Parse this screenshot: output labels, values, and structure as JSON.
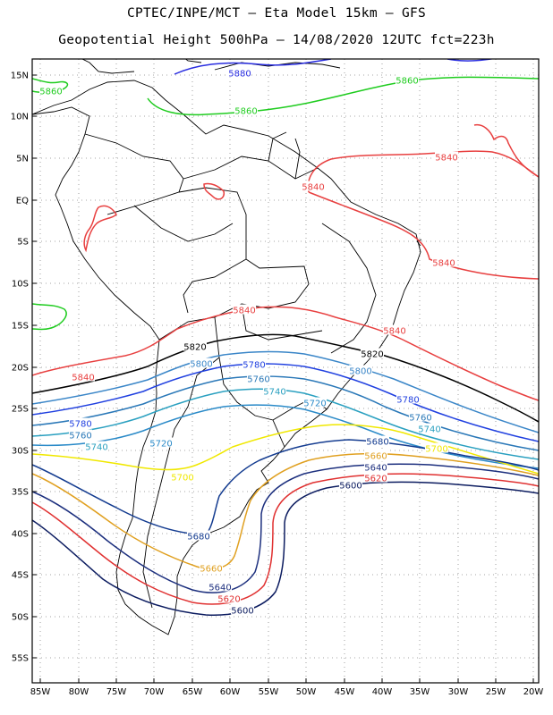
{
  "header": {
    "line1": "CPTEC/INPE/MCT –  Eta Model 15km – GFS",
    "line2": "Geopotential Height 500hPa – 14/08/2020 12UTC fct=223h"
  },
  "axes": {
    "lat_ticks": [
      "15N",
      "10N",
      "5N",
      "EQ",
      "5S",
      "10S",
      "15S",
      "20S",
      "25S",
      "30S",
      "35S",
      "40S",
      "45S",
      "50S",
      "55S"
    ],
    "lon_ticks": [
      "85W",
      "80W",
      "75W",
      "70W",
      "65W",
      "60W",
      "55W",
      "50W",
      "45W",
      "40W",
      "35W",
      "30W",
      "25W",
      "20W"
    ]
  },
  "contour_colors": {
    "5880": "#2a2ee0",
    "5860": "#1fcc1f",
    "5840": "#e84040",
    "5820": "#000000",
    "5800": "#3a86c8",
    "5780": "#2040e0",
    "5760": "#2a78b8",
    "5740": "#2aa0c0",
    "5720": "#2a8ac8",
    "5700": "#f0e800",
    "5680": "#143c90",
    "5660": "#e0a020",
    "5640": "#1c2f7e",
    "5620": "#e03030",
    "5600": "#0c1c60"
  },
  "contour_labels": [
    {
      "text": "5880",
      "level": "5880"
    },
    {
      "text": "5860",
      "level": "5860"
    },
    {
      "text": "5860",
      "level": "5860"
    },
    {
      "text": "5860",
      "level": "5860"
    },
    {
      "text": "5840",
      "level": "5840"
    },
    {
      "text": "5840",
      "level": "5840"
    },
    {
      "text": "5840",
      "level": "5840"
    },
    {
      "text": "5840",
      "level": "5840"
    },
    {
      "text": "5840",
      "level": "5840"
    },
    {
      "text": "5840",
      "level": "5840"
    },
    {
      "text": "5820",
      "level": "5820"
    },
    {
      "text": "5820",
      "level": "5820"
    },
    {
      "text": "5800",
      "level": "5800"
    },
    {
      "text": "5800",
      "level": "5800"
    },
    {
      "text": "5780",
      "level": "5780"
    },
    {
      "text": "5780",
      "level": "5780"
    },
    {
      "text": "5780",
      "level": "5780"
    },
    {
      "text": "5760",
      "level": "5760"
    },
    {
      "text": "5760",
      "level": "5760"
    },
    {
      "text": "5760",
      "level": "5760"
    },
    {
      "text": "5740",
      "level": "5740"
    },
    {
      "text": "5740",
      "level": "5740"
    },
    {
      "text": "5740",
      "level": "5740"
    },
    {
      "text": "5720",
      "level": "5720"
    },
    {
      "text": "5720",
      "level": "5720"
    },
    {
      "text": "5700",
      "level": "5700"
    },
    {
      "text": "5700",
      "level": "5700"
    },
    {
      "text": "5680",
      "level": "5680"
    },
    {
      "text": "5680",
      "level": "5680"
    },
    {
      "text": "5660",
      "level": "5660"
    },
    {
      "text": "5660",
      "level": "5660"
    },
    {
      "text": "5640",
      "level": "5640"
    },
    {
      "text": "5640",
      "level": "5640"
    },
    {
      "text": "5620",
      "level": "5620"
    },
    {
      "text": "5620",
      "level": "5620"
    },
    {
      "text": "5600",
      "level": "5600"
    },
    {
      "text": "5600",
      "level": "5600"
    }
  ]
}
